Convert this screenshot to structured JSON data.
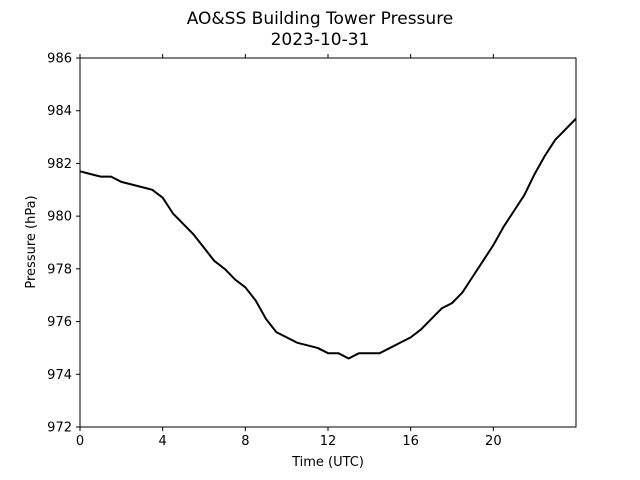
{
  "chart_data": {
    "type": "line",
    "title": "AO&SS Building Tower Pressure",
    "subtitle": "2023-10-31",
    "xlabel": "Time (UTC)",
    "ylabel": "Pressure (hPa)",
    "xlim": [
      0,
      24
    ],
    "ylim": [
      972,
      986
    ],
    "x_ticks": [
      0,
      4,
      8,
      12,
      16,
      20
    ],
    "y_ticks": [
      972,
      974,
      976,
      978,
      980,
      982,
      984,
      986
    ],
    "grid": false,
    "line_color": "#000000",
    "series": [
      {
        "x": [
          0,
          0.5,
          1.0,
          1.5,
          2.0,
          2.5,
          3.0,
          3.5,
          4.0,
          4.5,
          5.0,
          5.5,
          6.0,
          6.5,
          7.0,
          7.5,
          8.0,
          8.5,
          9.0,
          9.5,
          10.0,
          10.5,
          11.0,
          11.5,
          12.0,
          12.5,
          13.0,
          13.5,
          14.0,
          14.5,
          15.0,
          15.5,
          16.0,
          16.5,
          17.0,
          17.5,
          18.0,
          18.5,
          19.0,
          19.5,
          20.0,
          20.5,
          21.0,
          21.5,
          22.0,
          22.5,
          23.0,
          23.5,
          24.0
        ],
        "y": [
          981.7,
          981.6,
          981.5,
          981.5,
          981.3,
          981.2,
          981.1,
          981.0,
          980.7,
          980.1,
          979.7,
          979.3,
          978.8,
          978.3,
          978.0,
          977.6,
          977.3,
          976.8,
          976.1,
          975.6,
          975.4,
          975.2,
          975.1,
          975.0,
          974.8,
          974.8,
          974.6,
          974.8,
          974.8,
          974.8,
          975.0,
          975.2,
          975.4,
          975.7,
          976.1,
          976.5,
          976.7,
          977.1,
          977.7,
          978.3,
          978.9,
          979.6,
          980.2,
          980.8,
          981.6,
          982.3,
          982.9,
          983.3,
          983.7
        ]
      }
    ]
  }
}
